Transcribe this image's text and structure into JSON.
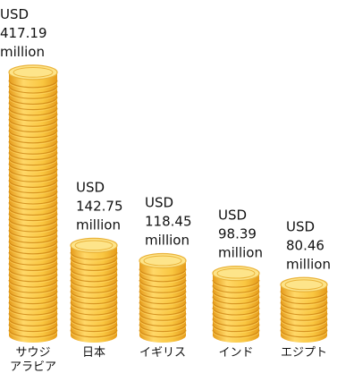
{
  "chart_data": {
    "type": "bar",
    "style": "stacked-coin-pillars",
    "categories": [
      "サウジ\nアラビア",
      "日本",
      "イギリス",
      "インド",
      "エジプト"
    ],
    "values": [
      417.19,
      142.75,
      118.45,
      98.39,
      80.46
    ],
    "value_prefix": "USD",
    "value_suffix": "million",
    "coin_colors": {
      "light": "#ffd868",
      "mid": "#f9c640",
      "dark": "#e59b1b",
      "rim": "#c97f10",
      "top": "#fde48a",
      "top_ring": "#eab33a"
    }
  }
}
